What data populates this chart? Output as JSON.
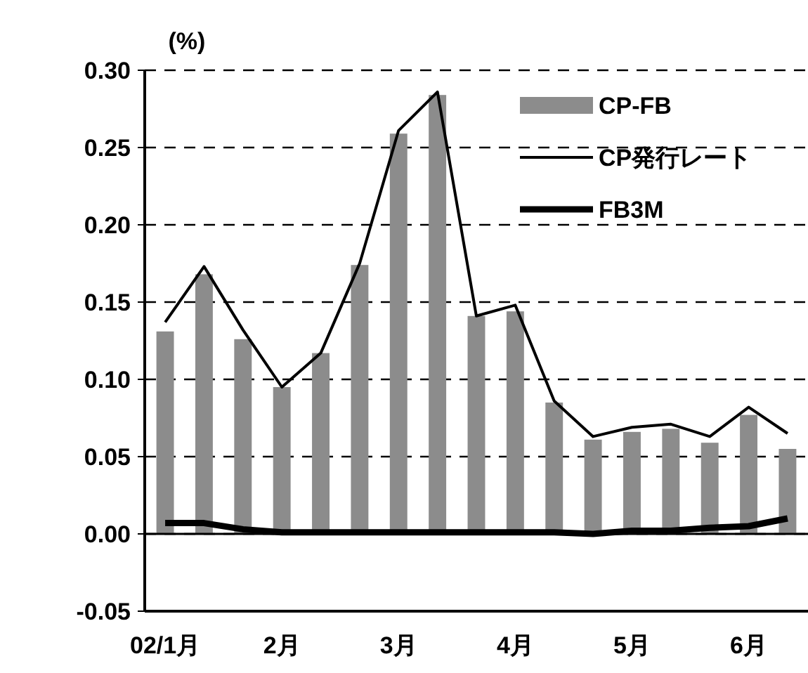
{
  "chart_data": {
    "type": "bar",
    "ylabel": "(%)",
    "categories": [
      "02/1月",
      null,
      null,
      "2月",
      null,
      null,
      "3月",
      null,
      null,
      "4月",
      null,
      null,
      "5月",
      null,
      null,
      "6月",
      null
    ],
    "series": [
      {
        "name": "CP-FB",
        "color": "#8c8c8c",
        "values": [
          0.131,
          0.168,
          0.126,
          0.095,
          0.117,
          0.174,
          0.259,
          0.284,
          0.141,
          0.144,
          0.085,
          0.061,
          0.066,
          0.068,
          0.059,
          0.077,
          0.055
        ]
      },
      {
        "name": "CP発行レート",
        "type": "line",
        "color": "#000000",
        "values": [
          0.137,
          0.173,
          0.132,
          0.095,
          0.117,
          0.175,
          0.261,
          0.286,
          0.141,
          0.148,
          0.086,
          0.063,
          0.069,
          0.071,
          0.063,
          0.082,
          0.065
        ]
      },
      {
        "name": "FB3M",
        "type": "line",
        "color": "#000000",
        "values": [
          0.007,
          0.007,
          0.003,
          0.001,
          0.001,
          0.001,
          0.001,
          0.001,
          0.001,
          0.001,
          0.001,
          0.0,
          0.002,
          0.002,
          0.004,
          0.005,
          0.01
        ]
      }
    ],
    "ylim": [
      -0.05,
      0.3
    ],
    "yticks": [
      {
        "value": -0.05,
        "label": "-0.05"
      },
      {
        "value": 0,
        "label": "0.00"
      },
      {
        "value": 0.05,
        "label": "0.05"
      },
      {
        "value": 0.1,
        "label": "0.10"
      },
      {
        "value": 0.15,
        "label": "0.15"
      },
      {
        "value": 0.2,
        "label": "0.20"
      },
      {
        "value": 0.25,
        "label": "0.25"
      },
      {
        "value": 0.3,
        "label": "0.30"
      }
    ],
    "grid": "y",
    "legend": "top right",
    "line_style": "solid",
    "marker": "none"
  }
}
